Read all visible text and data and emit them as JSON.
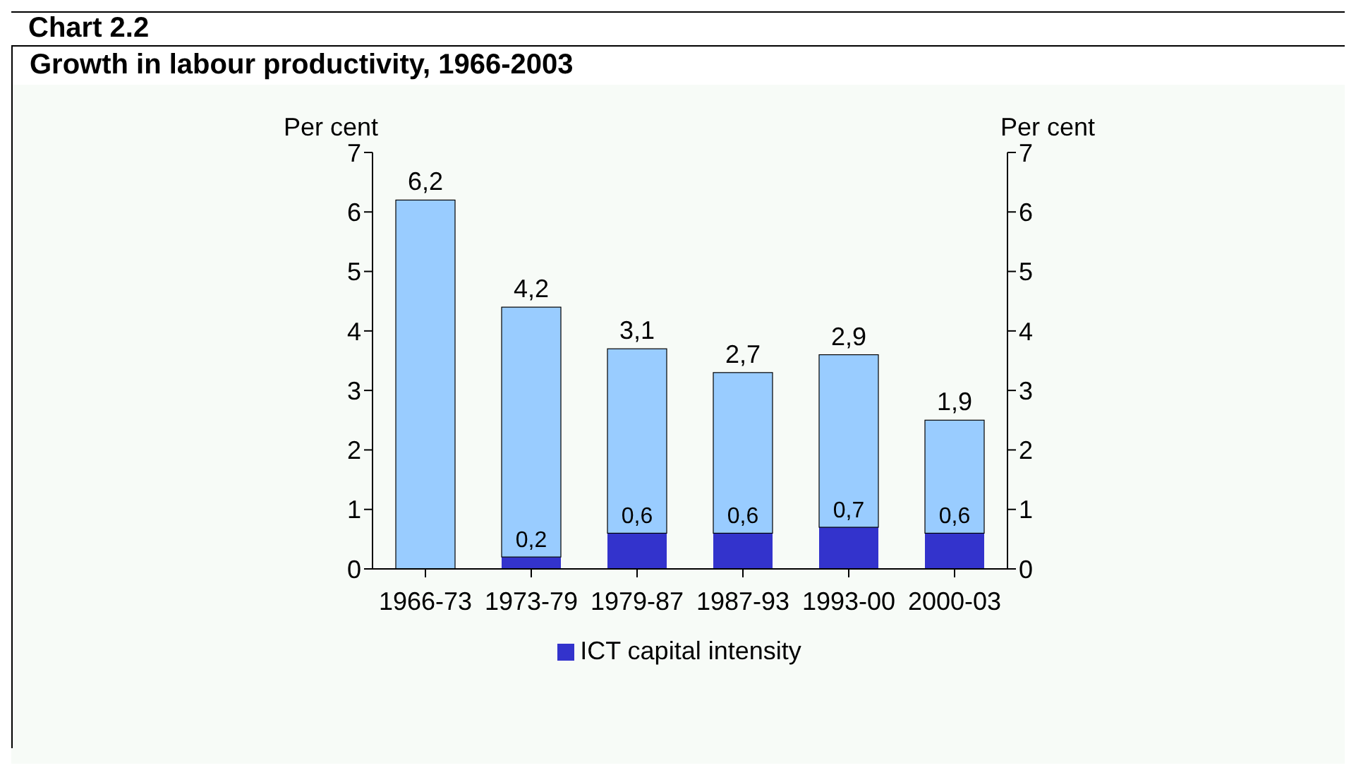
{
  "chart_data": {
    "type": "bar",
    "title": "Chart 2.2",
    "subtitle": "Growth in labour productivity, 1966-2003",
    "ylabel": "Per cent",
    "y2label": "Per cent",
    "categories": [
      "1966-73",
      "1973-79",
      "1979-87",
      "1987-93",
      "1993-00",
      "2000-03"
    ],
    "stacked": true,
    "series": [
      {
        "name": "ICT capital intensity",
        "color": "#3333cc",
        "values": [
          0,
          0.2,
          0.6,
          0.6,
          0.7,
          0.6
        ],
        "value_labels": [
          null,
          "0,2",
          "0,6",
          "0,6",
          "0,7",
          "0,6"
        ]
      },
      {
        "color": "#99ccff",
        "values": [
          6.2,
          4.2,
          3.1,
          2.7,
          2.9,
          1.9
        ],
        "value_labels": [
          "6,2",
          "4,2",
          "3,1",
          "2,7",
          "2,9",
          "1,9"
        ]
      }
    ],
    "ylim": [
      0,
      7
    ],
    "yticks": [
      0,
      1,
      2,
      3,
      4,
      5,
      6,
      7
    ],
    "y2lim": [
      0,
      7
    ],
    "y2ticks": [
      0,
      1,
      2,
      3,
      4,
      5,
      6,
      7
    ],
    "grid": false,
    "legend": "bottom"
  }
}
